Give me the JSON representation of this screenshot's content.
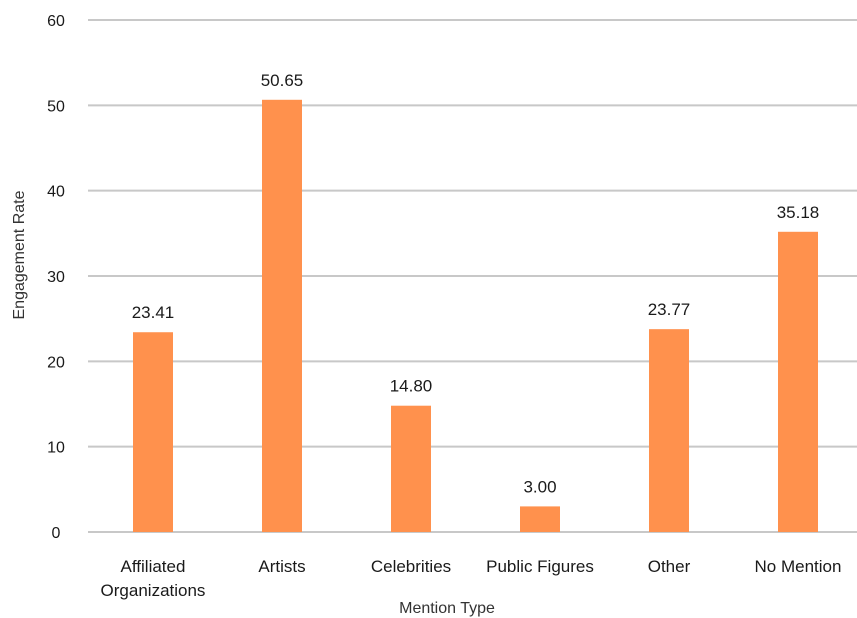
{
  "chart_data": {
    "type": "bar",
    "title": "",
    "xlabel": "Mention Type",
    "ylabel": "Engagement Rate",
    "categories": [
      [
        "Affiliated",
        "Organizations"
      ],
      [
        "Artists"
      ],
      [
        "Celebrities"
      ],
      [
        "Public Figures"
      ],
      [
        "Other"
      ],
      [
        "No Mention"
      ]
    ],
    "values": [
      23.41,
      50.65,
      14.8,
      3.0,
      23.77,
      35.18
    ],
    "value_labels": [
      "23.41",
      "50.65",
      "14.80",
      "3.00",
      "23.77",
      "35.18"
    ],
    "ylim": [
      0,
      60
    ],
    "yticks": [
      0,
      10,
      20,
      30,
      40,
      50,
      60
    ],
    "grid": true,
    "bar_color": "#ff914d",
    "grid_color": "#c8c8c8"
  }
}
